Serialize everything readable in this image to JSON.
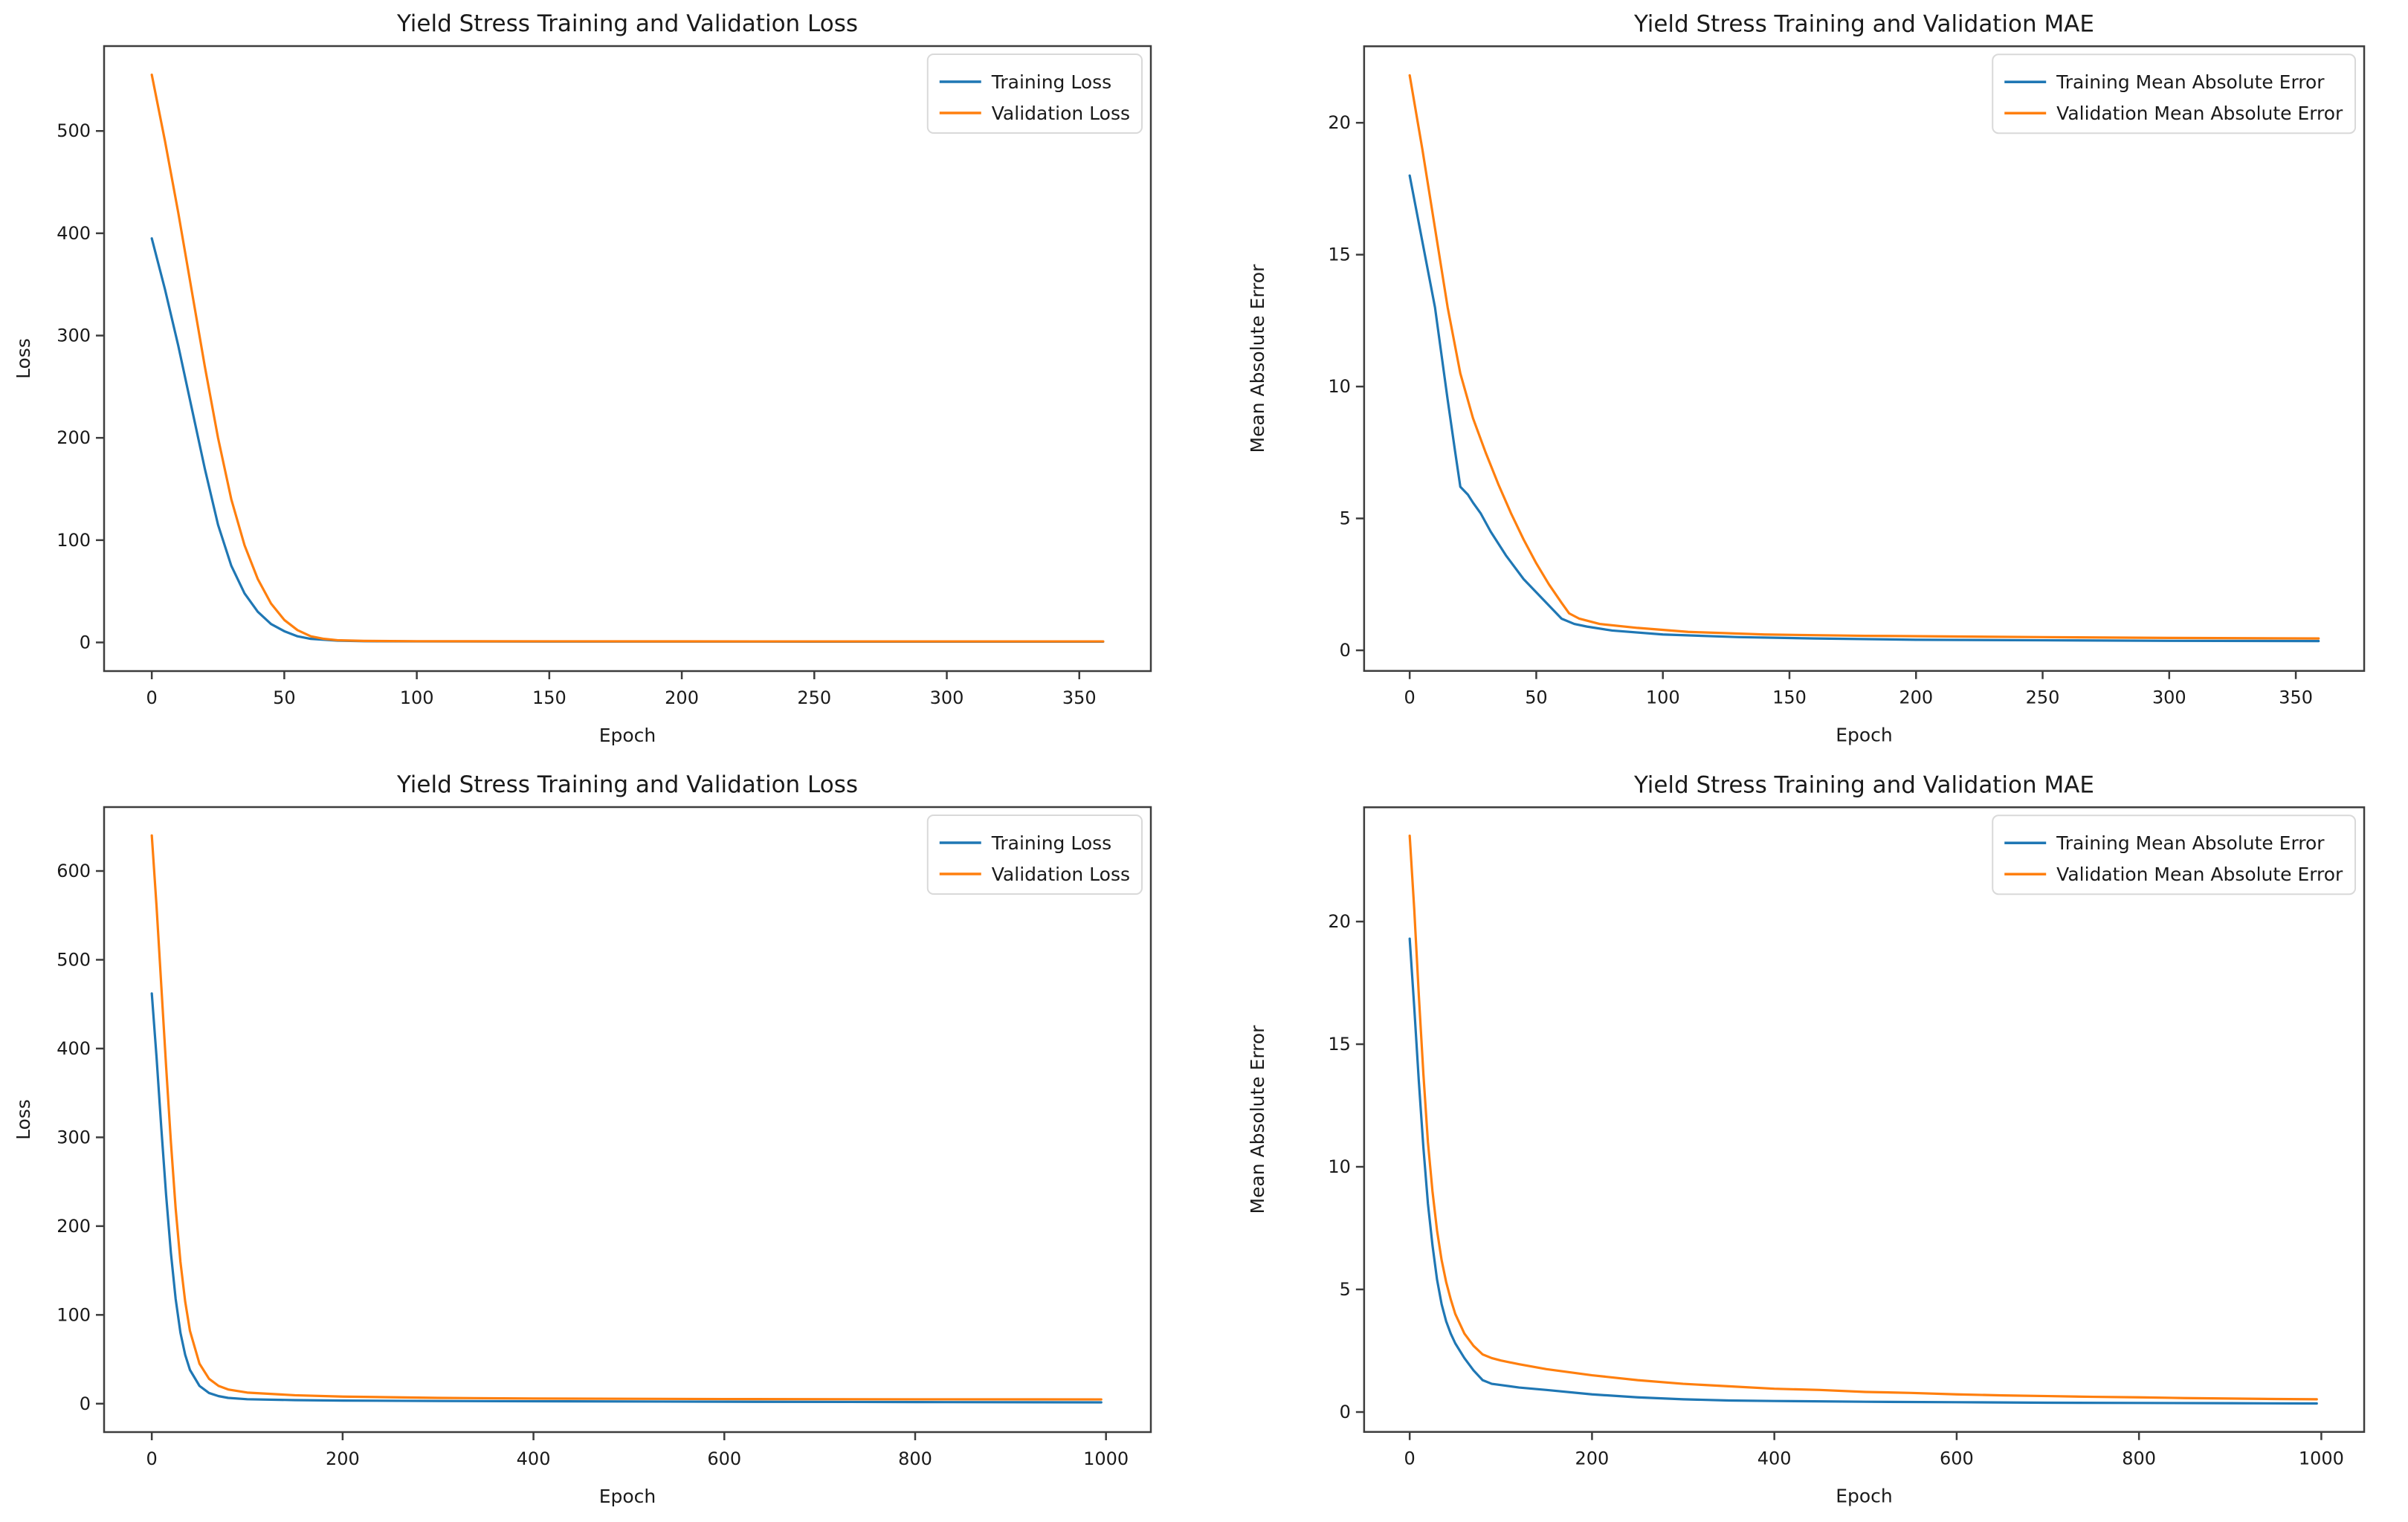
{
  "page": {
    "background": "#ffffff"
  },
  "colors": {
    "training_line": "#1f77b4",
    "validation_line": "#ff7f0e",
    "spine": "#3d3d3d",
    "tick_text": "#202020",
    "legend_border": "#d9d9d9",
    "legend_bg": "#ffffff"
  },
  "chart_data": [
    {
      "id": "loss-short-run",
      "type": "line",
      "title": "Yield Stress Training and Validation Loss",
      "xlabel": "Epoch",
      "ylabel": "Loss",
      "xlim": [
        -18,
        377
      ],
      "ylim": [
        -28,
        583
      ],
      "xticks": [
        0,
        50,
        100,
        150,
        200,
        250,
        300,
        350
      ],
      "yticks": [
        0,
        100,
        200,
        300,
        400,
        500
      ],
      "grid": false,
      "legend_position": "upper right",
      "series": [
        {
          "name": "Training Loss",
          "color": "#1f77b4",
          "points": [
            [
              0,
              395
            ],
            [
              5,
              345
            ],
            [
              10,
              290
            ],
            [
              15,
              230
            ],
            [
              20,
              170
            ],
            [
              25,
              115
            ],
            [
              30,
              75
            ],
            [
              35,
              48
            ],
            [
              40,
              30
            ],
            [
              45,
              18
            ],
            [
              50,
              11
            ],
            [
              55,
              6
            ],
            [
              60,
              3.5
            ],
            [
              70,
              1.8
            ],
            [
              80,
              1.2
            ],
            [
              100,
              1.0
            ],
            [
              150,
              0.9
            ],
            [
              200,
              0.85
            ],
            [
              250,
              0.8
            ],
            [
              300,
              0.8
            ],
            [
              359,
              0.8
            ]
          ]
        },
        {
          "name": "Validation Loss",
          "color": "#ff7f0e",
          "points": [
            [
              0,
              555
            ],
            [
              5,
              490
            ],
            [
              10,
              420
            ],
            [
              15,
              345
            ],
            [
              20,
              270
            ],
            [
              25,
              200
            ],
            [
              30,
              140
            ],
            [
              35,
              95
            ],
            [
              40,
              62
            ],
            [
              45,
              38
            ],
            [
              50,
              22
            ],
            [
              55,
              12
            ],
            [
              60,
              6
            ],
            [
              65,
              3.5
            ],
            [
              70,
              2.2
            ],
            [
              80,
              1.5
            ],
            [
              100,
              1.2
            ],
            [
              150,
              1.1
            ],
            [
              200,
              1.05
            ],
            [
              250,
              1.0
            ],
            [
              300,
              1.0
            ],
            [
              359,
              1.0
            ]
          ]
        }
      ]
    },
    {
      "id": "mae-short-run",
      "type": "line",
      "title": "Yield Stress Training and Validation MAE",
      "xlabel": "Epoch",
      "ylabel": "Mean Absolute Error",
      "xlim": [
        -18,
        377
      ],
      "ylim": [
        -0.78,
        22.9
      ],
      "xticks": [
        0,
        50,
        100,
        150,
        200,
        250,
        300,
        350
      ],
      "yticks": [
        0,
        5,
        10,
        15,
        20
      ],
      "grid": false,
      "legend_position": "upper right",
      "series": [
        {
          "name": "Training Mean Absolute Error",
          "color": "#1f77b4",
          "points": [
            [
              0,
              18
            ],
            [
              5,
              15.5
            ],
            [
              10,
              13
            ],
            [
              15,
              9.5
            ],
            [
              18,
              7.5
            ],
            [
              20,
              6.2
            ],
            [
              23,
              5.9
            ],
            [
              25,
              5.6
            ],
            [
              28,
              5.2
            ],
            [
              32,
              4.5
            ],
            [
              38,
              3.6
            ],
            [
              45,
              2.7
            ],
            [
              50,
              2.2
            ],
            [
              55,
              1.7
            ],
            [
              60,
              1.2
            ],
            [
              65,
              1.0
            ],
            [
              70,
              0.9
            ],
            [
              80,
              0.75
            ],
            [
              100,
              0.6
            ],
            [
              130,
              0.5
            ],
            [
              160,
              0.45
            ],
            [
              200,
              0.4
            ],
            [
              250,
              0.38
            ],
            [
              300,
              0.36
            ],
            [
              359,
              0.35
            ]
          ]
        },
        {
          "name": "Validation Mean Absolute Error",
          "color": "#ff7f0e",
          "points": [
            [
              0,
              21.8
            ],
            [
              5,
              19
            ],
            [
              10,
              16
            ],
            [
              15,
              13
            ],
            [
              20,
              10.5
            ],
            [
              25,
              8.8
            ],
            [
              30,
              7.5
            ],
            [
              35,
              6.3
            ],
            [
              40,
              5.2
            ],
            [
              45,
              4.2
            ],
            [
              50,
              3.3
            ],
            [
              55,
              2.5
            ],
            [
              60,
              1.8
            ],
            [
              63,
              1.4
            ],
            [
              67,
              1.2
            ],
            [
              75,
              1.0
            ],
            [
              90,
              0.85
            ],
            [
              110,
              0.7
            ],
            [
              140,
              0.6
            ],
            [
              180,
              0.55
            ],
            [
              250,
              0.5
            ],
            [
              300,
              0.47
            ],
            [
              359,
              0.45
            ]
          ]
        }
      ]
    },
    {
      "id": "loss-long-run",
      "type": "line",
      "title": "Yield Stress Training and Validation Loss",
      "xlabel": "Epoch",
      "ylabel": "Loss",
      "xlim": [
        -50,
        1047
      ],
      "ylim": [
        -32,
        672
      ],
      "xticks": [
        0,
        200,
        400,
        600,
        800,
        1000
      ],
      "yticks": [
        0,
        100,
        200,
        300,
        400,
        500,
        600
      ],
      "grid": false,
      "legend_position": "upper right",
      "series": [
        {
          "name": "Training Loss",
          "color": "#1f77b4",
          "points": [
            [
              0,
              462
            ],
            [
              5,
              390
            ],
            [
              10,
              310
            ],
            [
              15,
              235
            ],
            [
              20,
              170
            ],
            [
              25,
              118
            ],
            [
              30,
              80
            ],
            [
              35,
              55
            ],
            [
              40,
              38
            ],
            [
              50,
              20
            ],
            [
              60,
              12
            ],
            [
              70,
              8.5
            ],
            [
              80,
              6.5
            ],
            [
              100,
              5
            ],
            [
              150,
              4
            ],
            [
              200,
              3.5
            ],
            [
              300,
              3
            ],
            [
              400,
              2.7
            ],
            [
              600,
              2.2
            ],
            [
              800,
              1.8
            ],
            [
              995,
              1.5
            ]
          ]
        },
        {
          "name": "Validation Loss",
          "color": "#ff7f0e",
          "points": [
            [
              0,
              640
            ],
            [
              5,
              560
            ],
            [
              10,
              470
            ],
            [
              15,
              380
            ],
            [
              20,
              295
            ],
            [
              25,
              220
            ],
            [
              30,
              160
            ],
            [
              35,
              115
            ],
            [
              40,
              82
            ],
            [
              50,
              45
            ],
            [
              60,
              28
            ],
            [
              70,
              20
            ],
            [
              80,
              16
            ],
            [
              100,
              12.5
            ],
            [
              150,
              9.5
            ],
            [
              200,
              8
            ],
            [
              300,
              6.5
            ],
            [
              400,
              5.8
            ],
            [
              600,
              5.2
            ],
            [
              800,
              4.9
            ],
            [
              995,
              4.8
            ]
          ]
        }
      ]
    },
    {
      "id": "mae-long-run",
      "type": "line",
      "title": "Yield Stress Training and Validation MAE",
      "xlabel": "Epoch",
      "ylabel": "Mean Absolute Error",
      "xlim": [
        -50,
        1047
      ],
      "ylim": [
        -0.81,
        24.66
      ],
      "xticks": [
        0,
        200,
        400,
        600,
        800,
        1000
      ],
      "yticks": [
        0,
        5,
        10,
        15,
        20
      ],
      "grid": false,
      "legend_position": "upper right",
      "series": [
        {
          "name": "Training Mean Absolute Error",
          "color": "#1f77b4",
          "points": [
            [
              0,
              19.3
            ],
            [
              5,
              16.5
            ],
            [
              10,
              13.5
            ],
            [
              15,
              10.8
            ],
            [
              20,
              8.5
            ],
            [
              25,
              6.8
            ],
            [
              30,
              5.4
            ],
            [
              35,
              4.4
            ],
            [
              40,
              3.7
            ],
            [
              45,
              3.2
            ],
            [
              50,
              2.8
            ],
            [
              60,
              2.2
            ],
            [
              70,
              1.7
            ],
            [
              80,
              1.3
            ],
            [
              90,
              1.15
            ],
            [
              100,
              1.1
            ],
            [
              120,
              1.0
            ],
            [
              150,
              0.9
            ],
            [
              200,
              0.72
            ],
            [
              250,
              0.6
            ],
            [
              300,
              0.52
            ],
            [
              350,
              0.47
            ],
            [
              400,
              0.45
            ],
            [
              500,
              0.42
            ],
            [
              600,
              0.4
            ],
            [
              700,
              0.38
            ],
            [
              800,
              0.37
            ],
            [
              900,
              0.36
            ],
            [
              995,
              0.35
            ]
          ]
        },
        {
          "name": "Validation Mean Absolute Error",
          "color": "#ff7f0e",
          "points": [
            [
              0,
              23.5
            ],
            [
              5,
              20.5
            ],
            [
              10,
              17
            ],
            [
              15,
              13.8
            ],
            [
              20,
              11
            ],
            [
              25,
              9
            ],
            [
              30,
              7.4
            ],
            [
              35,
              6.2
            ],
            [
              40,
              5.3
            ],
            [
              45,
              4.6
            ],
            [
              50,
              4.0
            ],
            [
              60,
              3.2
            ],
            [
              70,
              2.7
            ],
            [
              80,
              2.35
            ],
            [
              90,
              2.2
            ],
            [
              100,
              2.1
            ],
            [
              120,
              1.95
            ],
            [
              150,
              1.75
            ],
            [
              200,
              1.5
            ],
            [
              250,
              1.3
            ],
            [
              300,
              1.15
            ],
            [
              350,
              1.05
            ],
            [
              400,
              0.95
            ],
            [
              450,
              0.9
            ],
            [
              500,
              0.82
            ],
            [
              550,
              0.78
            ],
            [
              600,
              0.72
            ],
            [
              650,
              0.68
            ],
            [
              700,
              0.65
            ],
            [
              750,
              0.62
            ],
            [
              800,
              0.6
            ],
            [
              850,
              0.57
            ],
            [
              900,
              0.55
            ],
            [
              950,
              0.53
            ],
            [
              995,
              0.52
            ]
          ]
        }
      ]
    }
  ]
}
